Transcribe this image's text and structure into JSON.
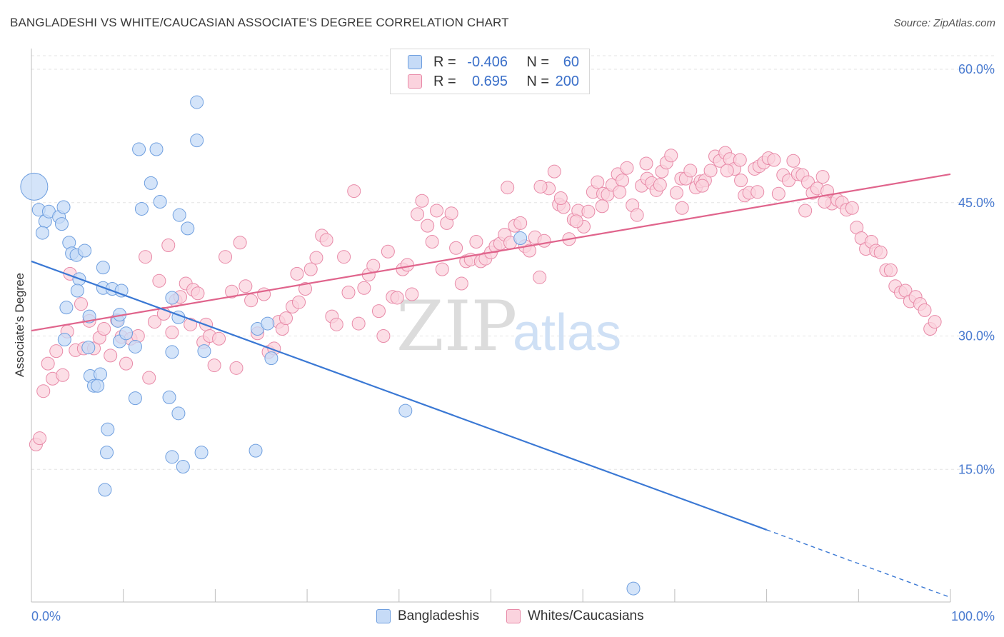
{
  "title": "BANGLADESHI VS WHITE/CAUCASIAN ASSOCIATE'S DEGREE CORRELATION CHART",
  "source": "Source: ZipAtlas.com",
  "watermark": {
    "zip": "ZIP",
    "atlas": "atlas"
  },
  "legend": {
    "rows": [
      {
        "r_label": "R =",
        "r_value": "-0.406",
        "n_label": "N =",
        "n_value": "60",
        "color": "#a9c7f2",
        "border": "#6f9fdf"
      },
      {
        "r_label": "R =",
        "r_value": "0.695",
        "n_label": "N =",
        "n_value": "200",
        "color": "#f8bfd0",
        "border": "#e88aa8"
      }
    ]
  },
  "bottom_legend": [
    {
      "label": "Bangladeshis",
      "color": "#c6dbf7",
      "border": "#6f9fdf"
    },
    {
      "label": "Whites/Caucasians",
      "color": "#fbd3de",
      "border": "#e88aa8"
    }
  ],
  "chart_data": {
    "type": "scatter",
    "ylabel": "Associate's Degree",
    "xlim": [
      0,
      100
    ],
    "ylim": [
      0,
      60
    ],
    "x_tick_labels": [
      "0.0%",
      "100.0%"
    ],
    "y_ticks": [
      15,
      30,
      45,
      60
    ],
    "y_tick_labels": [
      "15.0%",
      "30.0%",
      "45.0%",
      "60.0%"
    ],
    "grid": true,
    "series": [
      {
        "name": "Bangladeshis",
        "color": "#6f9fdf",
        "fill": "#c6dbf7",
        "trend": {
          "x": [
            0,
            80
          ],
          "y": [
            38.4,
            8.2
          ],
          "dash_to_x": 100,
          "dash_to_y": 0.6,
          "color": "#3a78d4"
        },
        "points": [
          [
            0.3,
            46.8
          ],
          [
            0.8,
            44.2
          ],
          [
            1.5,
            42.9
          ],
          [
            1.2,
            41.6
          ],
          [
            1.9,
            44.0
          ],
          [
            3.0,
            43.4
          ],
          [
            3.3,
            42.6
          ],
          [
            3.5,
            44.5
          ],
          [
            4.1,
            40.5
          ],
          [
            4.4,
            39.3
          ],
          [
            4.9,
            39.1
          ],
          [
            5.2,
            36.4
          ],
          [
            5.0,
            35.1
          ],
          [
            3.8,
            33.2
          ],
          [
            5.8,
            39.6
          ],
          [
            6.3,
            32.2
          ],
          [
            7.8,
            37.7
          ],
          [
            7.8,
            35.4
          ],
          [
            8.8,
            35.3
          ],
          [
            9.8,
            35.1
          ],
          [
            9.4,
            31.7
          ],
          [
            9.6,
            32.4
          ],
          [
            9.6,
            29.4
          ],
          [
            10.3,
            30.3
          ],
          [
            11.3,
            28.8
          ],
          [
            11.3,
            23.0
          ],
          [
            12.0,
            44.3
          ],
          [
            11.7,
            51.0
          ],
          [
            13.0,
            47.2
          ],
          [
            14.0,
            45.1
          ],
          [
            13.6,
            51.0
          ],
          [
            15.3,
            34.3
          ],
          [
            15.3,
            28.2
          ],
          [
            15.0,
            23.1
          ],
          [
            16.0,
            32.1
          ],
          [
            16.0,
            21.3
          ],
          [
            16.1,
            43.6
          ],
          [
            15.3,
            16.4
          ],
          [
            17.0,
            42.1
          ],
          [
            16.5,
            15.3
          ],
          [
            18.0,
            56.3
          ],
          [
            18.0,
            52.0
          ],
          [
            18.5,
            16.9
          ],
          [
            18.8,
            28.3
          ],
          [
            6.2,
            28.7
          ],
          [
            6.4,
            25.5
          ],
          [
            7.5,
            25.7
          ],
          [
            6.8,
            24.4
          ],
          [
            7.2,
            24.4
          ],
          [
            8.3,
            19.5
          ],
          [
            8.2,
            16.9
          ],
          [
            8.0,
            12.7
          ],
          [
            24.6,
            30.8
          ],
          [
            25.7,
            31.4
          ],
          [
            26.1,
            27.5
          ],
          [
            24.4,
            17.1
          ],
          [
            40.7,
            21.6
          ],
          [
            53.2,
            41.0
          ],
          [
            65.5,
            1.6
          ],
          [
            3.6,
            29.6
          ]
        ]
      },
      {
        "name": "Whites/Caucasians",
        "color": "#e88aa8",
        "fill": "#fbd3de",
        "trend": {
          "x": [
            0,
            100
          ],
          "y": [
            30.6,
            48.2
          ],
          "color": "#e0648c"
        },
        "points": [
          [
            0.5,
            17.8
          ],
          [
            0.9,
            18.5
          ],
          [
            1.3,
            23.8
          ],
          [
            1.8,
            26.9
          ],
          [
            2.3,
            25.2
          ],
          [
            2.7,
            28.3
          ],
          [
            3.4,
            25.6
          ],
          [
            3.9,
            30.5
          ],
          [
            4.2,
            37.0
          ],
          [
            4.8,
            28.4
          ],
          [
            5.4,
            33.6
          ],
          [
            5.7,
            28.6
          ],
          [
            6.3,
            31.7
          ],
          [
            6.8,
            28.6
          ],
          [
            7.4,
            29.8
          ],
          [
            7.9,
            30.8
          ],
          [
            8.6,
            27.8
          ],
          [
            9.3,
            31.8
          ],
          [
            9.8,
            29.9
          ],
          [
            10.3,
            26.9
          ],
          [
            10.8,
            29.7
          ],
          [
            11.6,
            30.0
          ],
          [
            12.4,
            38.9
          ],
          [
            12.8,
            25.3
          ],
          [
            13.4,
            31.6
          ],
          [
            13.9,
            36.2
          ],
          [
            14.4,
            32.5
          ],
          [
            14.9,
            40.2
          ],
          [
            15.3,
            30.4
          ],
          [
            15.7,
            34.0
          ],
          [
            16.2,
            34.4
          ],
          [
            16.8,
            35.9
          ],
          [
            17.3,
            31.3
          ],
          [
            17.6,
            35.2
          ],
          [
            18.1,
            34.8
          ],
          [
            18.7,
            29.3
          ],
          [
            19.0,
            31.3
          ],
          [
            19.4,
            30.0
          ],
          [
            19.9,
            26.7
          ],
          [
            20.4,
            29.7
          ],
          [
            21.1,
            38.9
          ],
          [
            21.8,
            35.0
          ],
          [
            22.3,
            26.4
          ],
          [
            22.7,
            40.5
          ],
          [
            23.3,
            35.6
          ],
          [
            23.9,
            34.0
          ],
          [
            24.6,
            30.3
          ],
          [
            25.3,
            34.7
          ],
          [
            25.8,
            28.2
          ],
          [
            26.4,
            28.6
          ],
          [
            26.9,
            31.6
          ],
          [
            27.3,
            30.8
          ],
          [
            27.7,
            32.0
          ],
          [
            28.4,
            33.3
          ],
          [
            29.1,
            33.8
          ],
          [
            28.9,
            37.0
          ],
          [
            29.8,
            35.3
          ],
          [
            30.4,
            37.5
          ],
          [
            31.0,
            38.8
          ],
          [
            31.6,
            41.3
          ],
          [
            32.1,
            40.8
          ],
          [
            32.7,
            32.2
          ],
          [
            33.2,
            31.3
          ],
          [
            34.0,
            38.9
          ],
          [
            34.5,
            34.9
          ],
          [
            35.1,
            46.3
          ],
          [
            35.6,
            31.4
          ],
          [
            36.2,
            35.4
          ],
          [
            36.7,
            36.9
          ],
          [
            37.2,
            37.9
          ],
          [
            37.8,
            32.8
          ],
          [
            38.3,
            30.0
          ],
          [
            38.8,
            39.5
          ],
          [
            39.3,
            34.4
          ],
          [
            39.8,
            34.3
          ],
          [
            40.4,
            37.5
          ],
          [
            40.9,
            38.0
          ],
          [
            41.4,
            34.7
          ],
          [
            42.0,
            43.7
          ],
          [
            42.5,
            45.2
          ],
          [
            43.1,
            42.4
          ],
          [
            43.6,
            40.6
          ],
          [
            44.1,
            44.1
          ],
          [
            44.7,
            37.5
          ],
          [
            45.2,
            42.7
          ],
          [
            45.7,
            43.8
          ],
          [
            46.2,
            39.9
          ],
          [
            46.8,
            35.9
          ],
          [
            47.3,
            38.4
          ],
          [
            47.8,
            38.6
          ],
          [
            48.4,
            40.6
          ],
          [
            48.9,
            38.4
          ],
          [
            49.4,
            38.7
          ],
          [
            50.0,
            39.4
          ],
          [
            50.5,
            40.1
          ],
          [
            51.0,
            40.4
          ],
          [
            51.5,
            41.4
          ],
          [
            52.1,
            40.5
          ],
          [
            52.6,
            42.4
          ],
          [
            53.2,
            42.7
          ],
          [
            53.7,
            40.1
          ],
          [
            54.2,
            39.6
          ],
          [
            54.8,
            41.1
          ],
          [
            55.3,
            36.6
          ],
          [
            55.8,
            40.7
          ],
          [
            56.3,
            46.6
          ],
          [
            56.9,
            48.5
          ],
          [
            57.4,
            44.8
          ],
          [
            57.9,
            44.5
          ],
          [
            58.5,
            40.9
          ],
          [
            59.0,
            43.1
          ],
          [
            59.5,
            44.1
          ],
          [
            60.1,
            42.3
          ],
          [
            60.6,
            44.0
          ],
          [
            61.1,
            46.2
          ],
          [
            61.6,
            47.3
          ],
          [
            62.2,
            46.0
          ],
          [
            62.7,
            45.9
          ],
          [
            63.2,
            47.0
          ],
          [
            63.8,
            48.2
          ],
          [
            64.3,
            47.5
          ],
          [
            64.8,
            48.9
          ],
          [
            65.4,
            44.7
          ],
          [
            65.9,
            43.6
          ],
          [
            66.4,
            46.9
          ],
          [
            67.0,
            47.7
          ],
          [
            67.5,
            47.2
          ],
          [
            68.0,
            46.4
          ],
          [
            68.6,
            48.5
          ],
          [
            69.1,
            49.5
          ],
          [
            69.6,
            50.3
          ],
          [
            70.2,
            46.1
          ],
          [
            70.7,
            47.7
          ],
          [
            71.2,
            47.7
          ],
          [
            71.7,
            48.6
          ],
          [
            72.3,
            46.7
          ],
          [
            72.8,
            47.4
          ],
          [
            73.3,
            47.5
          ],
          [
            73.9,
            48.6
          ],
          [
            74.4,
            50.2
          ],
          [
            74.9,
            49.7
          ],
          [
            75.5,
            50.6
          ],
          [
            76.0,
            49.9
          ],
          [
            76.5,
            48.8
          ],
          [
            77.1,
            49.8
          ],
          [
            77.6,
            45.8
          ],
          [
            78.1,
            46.1
          ],
          [
            78.7,
            48.8
          ],
          [
            79.2,
            49.1
          ],
          [
            79.7,
            49.5
          ],
          [
            80.2,
            50.0
          ],
          [
            80.8,
            49.8
          ],
          [
            81.3,
            46.0
          ],
          [
            81.8,
            48.1
          ],
          [
            82.4,
            47.5
          ],
          [
            82.9,
            49.7
          ],
          [
            83.4,
            48.2
          ],
          [
            83.9,
            48.1
          ],
          [
            84.5,
            47.3
          ],
          [
            85.0,
            46.1
          ],
          [
            85.5,
            46.6
          ],
          [
            86.1,
            47.9
          ],
          [
            86.6,
            46.3
          ],
          [
            87.1,
            44.9
          ],
          [
            87.7,
            45.3
          ],
          [
            88.2,
            45.0
          ],
          [
            88.7,
            44.2
          ],
          [
            89.3,
            44.4
          ],
          [
            89.8,
            42.2
          ],
          [
            90.3,
            41.0
          ],
          [
            90.8,
            39.8
          ],
          [
            91.4,
            40.6
          ],
          [
            91.9,
            39.6
          ],
          [
            92.4,
            39.4
          ],
          [
            93.0,
            37.4
          ],
          [
            93.5,
            37.4
          ],
          [
            94.0,
            35.6
          ],
          [
            94.6,
            34.9
          ],
          [
            95.1,
            35.1
          ],
          [
            95.6,
            33.9
          ],
          [
            96.2,
            34.4
          ],
          [
            96.7,
            33.6
          ],
          [
            97.2,
            32.9
          ],
          [
            97.8,
            30.8
          ],
          [
            98.3,
            31.6
          ],
          [
            51.8,
            46.7
          ],
          [
            55.4,
            46.8
          ],
          [
            64.0,
            46.2
          ],
          [
            57.6,
            45.5
          ],
          [
            59.3,
            42.9
          ],
          [
            62.1,
            44.6
          ],
          [
            66.9,
            49.4
          ],
          [
            68.4,
            47.0
          ],
          [
            70.8,
            44.4
          ],
          [
            73.0,
            46.9
          ],
          [
            75.7,
            48.6
          ],
          [
            77.2,
            47.5
          ],
          [
            79.0,
            46.2
          ],
          [
            84.2,
            44.1
          ],
          [
            86.3,
            45.1
          ]
        ]
      }
    ]
  }
}
